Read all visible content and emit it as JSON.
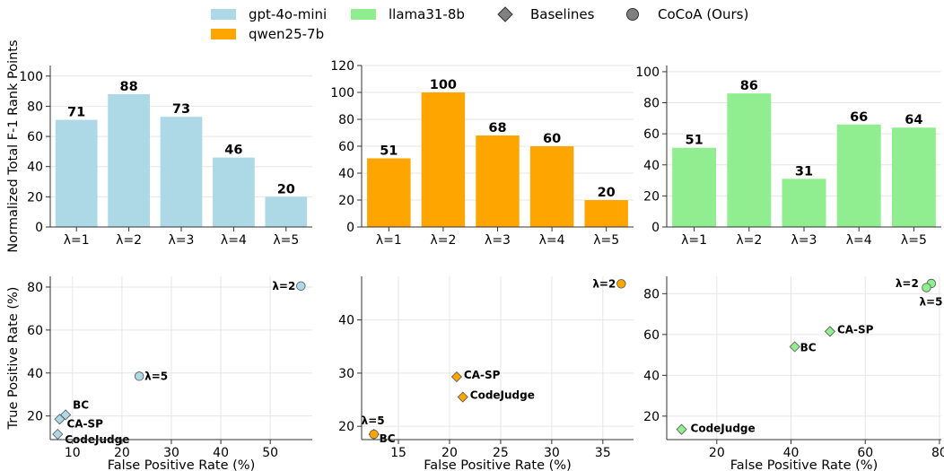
{
  "legend": {
    "items": [
      {
        "label": "gpt-4o-mini",
        "kind": "patch",
        "color": "#add8e6"
      },
      {
        "label": "llama31-8b",
        "kind": "patch",
        "color": "#90ee90"
      },
      {
        "label": "Baselines",
        "kind": "diamond",
        "color": "#808080"
      },
      {
        "label": "CoCoA (Ours)",
        "kind": "circle",
        "color": "#808080"
      },
      {
        "label": "qwen25-7b",
        "kind": "patch",
        "color": "#ffa500"
      }
    ]
  },
  "chart_data": [
    {
      "type": "bar",
      "model": "gpt-4o-mini",
      "color": "#add8e6",
      "categories": [
        "λ=1",
        "λ=2",
        "λ=3",
        "λ=4",
        "λ=5"
      ],
      "values": [
        71,
        88,
        73,
        46,
        20
      ],
      "value_labels": [
        "71",
        "88",
        "73",
        "46",
        "20"
      ],
      "ylabel": "Normalized Total F-1 Rank Points",
      "ylim": [
        0,
        107
      ],
      "yticks": [
        0,
        20,
        40,
        60,
        80,
        100
      ],
      "grid": true
    },
    {
      "type": "bar",
      "model": "qwen25-7b",
      "color": "#ffa500",
      "categories": [
        "λ=1",
        "λ=2",
        "λ=3",
        "λ=4",
        "λ=5"
      ],
      "values": [
        51,
        100,
        68,
        60,
        20
      ],
      "value_labels": [
        "51",
        "100",
        "68",
        "60",
        "20"
      ],
      "ylabel": "",
      "ylim": [
        0,
        120
      ],
      "yticks": [
        0,
        20,
        40,
        60,
        80,
        100,
        120
      ],
      "grid": true
    },
    {
      "type": "bar",
      "model": "llama31-8b",
      "color": "#90ee90",
      "categories": [
        "λ=1",
        "λ=2",
        "λ=3",
        "λ=4",
        "λ=5"
      ],
      "values": [
        51,
        86,
        31,
        66,
        64
      ],
      "value_labels": [
        "51",
        "86",
        "31",
        "66",
        "64"
      ],
      "ylabel": "",
      "ylim": [
        0,
        104
      ],
      "yticks": [
        0,
        20,
        40,
        60,
        80,
        100
      ],
      "grid": true
    },
    {
      "type": "scatter",
      "model": "gpt-4o-mini",
      "color": "#add8e6",
      "xlabel": "False Positive Rate (%)",
      "ylabel": "True Positive Rate (%)",
      "xlim": [
        5.5,
        58.5
      ],
      "ylim": [
        9,
        85
      ],
      "xticks": [
        10,
        20,
        30,
        40,
        50
      ],
      "yticks": [
        20,
        40,
        60,
        80
      ],
      "grid": true,
      "points": [
        {
          "label": "BC",
          "x": 8.6,
          "y": 20.5,
          "marker": "diamond"
        },
        {
          "label": "CA-SP",
          "x": 7.4,
          "y": 18.5,
          "marker": "diamond"
        },
        {
          "label": "CodeJudge",
          "x": 7.0,
          "y": 11.5,
          "marker": "diamond"
        },
        {
          "label": "λ=5",
          "x": 23.5,
          "y": 38.5,
          "marker": "circle"
        },
        {
          "label": "λ=2",
          "x": 56.2,
          "y": 80.5,
          "marker": "circle"
        }
      ]
    },
    {
      "type": "scatter",
      "model": "qwen25-7b",
      "color": "#ffa500",
      "xlabel": "False Positive Rate (%)",
      "ylabel": "",
      "xlim": [
        11.4,
        38.0
      ],
      "ylim": [
        17.5,
        48.2
      ],
      "xticks": [
        15,
        20,
        25,
        30,
        35
      ],
      "yticks": [
        20,
        30,
        40
      ],
      "grid": true,
      "points": [
        {
          "label": "CA-SP",
          "x": 20.7,
          "y": 29.3,
          "marker": "diamond"
        },
        {
          "label": "CodeJudge",
          "x": 21.3,
          "y": 25.5,
          "marker": "diamond"
        },
        {
          "label": "BC",
          "x": 12.6,
          "y": 18.5,
          "marker": "diamond"
        },
        {
          "label": "λ=5",
          "x": 12.6,
          "y": 18.5,
          "marker": "circle"
        },
        {
          "label": "λ=2",
          "x": 36.8,
          "y": 46.8,
          "marker": "circle"
        }
      ]
    },
    {
      "type": "scatter",
      "model": "llama31-8b",
      "color": "#90ee90",
      "xlabel": "False Positive Rate (%)",
      "ylabel": "",
      "xlim": [
        6.5,
        80.5
      ],
      "ylim": [
        8.5,
        88.5
      ],
      "xticks": [
        20,
        40,
        60,
        80
      ],
      "yticks": [
        20,
        40,
        60,
        80
      ],
      "grid": true,
      "points": [
        {
          "label": "CA-SP",
          "x": 50.5,
          "y": 61.5,
          "marker": "diamond"
        },
        {
          "label": "BC",
          "x": 41.0,
          "y": 54.0,
          "marker": "diamond"
        },
        {
          "label": "CodeJudge",
          "x": 10.5,
          "y": 13.5,
          "marker": "diamond"
        },
        {
          "label": "λ=2",
          "x": 77.8,
          "y": 85.0,
          "marker": "circle"
        },
        {
          "label": "λ=5",
          "x": 76.5,
          "y": 83.0,
          "marker": "circle"
        }
      ]
    }
  ]
}
